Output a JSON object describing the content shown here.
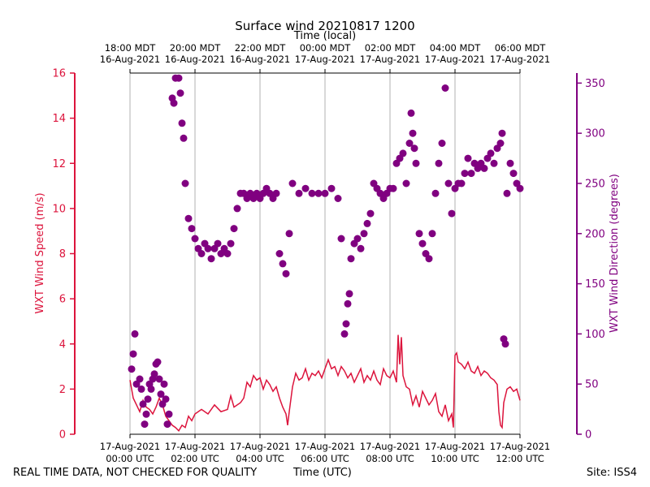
{
  "chart_data": {
    "type": "line",
    "title": "Surface wind 20210817 1200",
    "xlabel": "Time (UTC)",
    "top_xlabel": "Time (local)",
    "ylabel_left": "WXT Wind Speed (m/s)",
    "ylabel_right": "WXT Wind Direction (degrees)",
    "x_range_utc": [
      "2021-08-17 00:00",
      "2021-08-17 12:00"
    ],
    "ylim_left": [
      0,
      16
    ],
    "ylim_right": [
      0,
      360
    ],
    "yticks_left": [
      "0",
      "2",
      "4",
      "6",
      "8",
      "10",
      "12",
      "14",
      "16"
    ],
    "yticks_right": [
      "0",
      "50",
      "100",
      "150",
      "200",
      "250",
      "300",
      "350"
    ],
    "xticks_bottom": [
      {
        "hour": 0,
        "date": "17-Aug-2021",
        "time": "00:00 UTC"
      },
      {
        "hour": 2,
        "date": "17-Aug-2021",
        "time": "02:00 UTC"
      },
      {
        "hour": 4,
        "date": "17-Aug-2021",
        "time": "04:00 UTC"
      },
      {
        "hour": 6,
        "date": "17-Aug-2021",
        "time": "06:00 UTC"
      },
      {
        "hour": 8,
        "date": "17-Aug-2021",
        "time": "08:00 UTC"
      },
      {
        "hour": 10,
        "date": "17-Aug-2021",
        "time": "10:00 UTC"
      },
      {
        "hour": 12,
        "date": "17-Aug-2021",
        "time": "12:00 UTC"
      }
    ],
    "xticks_top": [
      {
        "hour": 0,
        "time": "18:00 MDT",
        "date": "16-Aug-2021"
      },
      {
        "hour": 2,
        "time": "20:00 MDT",
        "date": "16-Aug-2021"
      },
      {
        "hour": 4,
        "time": "22:00 MDT",
        "date": "16-Aug-2021"
      },
      {
        "hour": 6,
        "time": "00:00 MDT",
        "date": "17-Aug-2021"
      },
      {
        "hour": 8,
        "time": "02:00 MDT",
        "date": "17-Aug-2021"
      },
      {
        "hour": 10,
        "time": "04:00 MDT",
        "date": "17-Aug-2021"
      },
      {
        "hour": 12,
        "time": "06:00 MDT",
        "date": "17-Aug-2021"
      }
    ],
    "grid": "vertical",
    "series": [
      {
        "color": "#dc143c",
        "style": "line",
        "axis": "left",
        "points": [
          [
            0.0,
            2.4
          ],
          [
            0.1,
            1.6
          ],
          [
            0.2,
            1.3
          ],
          [
            0.3,
            1.0
          ],
          [
            0.4,
            1.5
          ],
          [
            0.5,
            1.2
          ],
          [
            0.6,
            1.1
          ],
          [
            0.7,
            0.9
          ],
          [
            0.8,
            1.2
          ],
          [
            0.9,
            1.6
          ],
          [
            1.0,
            1.3
          ],
          [
            1.1,
            0.8
          ],
          [
            1.2,
            0.6
          ],
          [
            1.3,
            0.4
          ],
          [
            1.4,
            0.3
          ],
          [
            1.5,
            0.15
          ],
          [
            1.6,
            0.4
          ],
          [
            1.7,
            0.3
          ],
          [
            1.8,
            0.8
          ],
          [
            1.9,
            0.6
          ],
          [
            2.0,
            0.9
          ],
          [
            2.2,
            1.1
          ],
          [
            2.4,
            0.9
          ],
          [
            2.6,
            1.3
          ],
          [
            2.8,
            1.0
          ],
          [
            3.0,
            1.1
          ],
          [
            3.1,
            1.7
          ],
          [
            3.2,
            1.2
          ],
          [
            3.4,
            1.4
          ],
          [
            3.5,
            1.6
          ],
          [
            3.6,
            2.3
          ],
          [
            3.7,
            2.1
          ],
          [
            3.8,
            2.6
          ],
          [
            3.9,
            2.4
          ],
          [
            4.0,
            2.5
          ],
          [
            4.1,
            2.0
          ],
          [
            4.2,
            2.4
          ],
          [
            4.3,
            2.2
          ],
          [
            4.4,
            1.9
          ],
          [
            4.5,
            2.1
          ],
          [
            4.6,
            1.6
          ],
          [
            4.7,
            1.2
          ],
          [
            4.8,
            0.9
          ],
          [
            4.85,
            0.4
          ],
          [
            4.9,
            1.0
          ],
          [
            5.0,
            2.1
          ],
          [
            5.1,
            2.7
          ],
          [
            5.2,
            2.4
          ],
          [
            5.3,
            2.5
          ],
          [
            5.4,
            2.9
          ],
          [
            5.5,
            2.4
          ],
          [
            5.6,
            2.7
          ],
          [
            5.7,
            2.6
          ],
          [
            5.8,
            2.8
          ],
          [
            5.9,
            2.5
          ],
          [
            6.0,
            2.9
          ],
          [
            6.1,
            3.3
          ],
          [
            6.2,
            2.9
          ],
          [
            6.3,
            3.0
          ],
          [
            6.4,
            2.6
          ],
          [
            6.5,
            3.0
          ],
          [
            6.6,
            2.8
          ],
          [
            6.7,
            2.5
          ],
          [
            6.8,
            2.7
          ],
          [
            6.9,
            2.3
          ],
          [
            7.0,
            2.6
          ],
          [
            7.1,
            2.9
          ],
          [
            7.2,
            2.3
          ],
          [
            7.3,
            2.6
          ],
          [
            7.4,
            2.4
          ],
          [
            7.5,
            2.8
          ],
          [
            7.6,
            2.4
          ],
          [
            7.7,
            2.2
          ],
          [
            7.8,
            2.9
          ],
          [
            7.9,
            2.6
          ],
          [
            8.0,
            2.5
          ],
          [
            8.1,
            2.8
          ],
          [
            8.2,
            2.3
          ],
          [
            8.25,
            4.4
          ],
          [
            8.3,
            3.1
          ],
          [
            8.35,
            4.3
          ],
          [
            8.4,
            2.6
          ],
          [
            8.5,
            2.1
          ],
          [
            8.6,
            2.0
          ],
          [
            8.7,
            1.3
          ],
          [
            8.8,
            1.7
          ],
          [
            8.9,
            1.2
          ],
          [
            9.0,
            1.9
          ],
          [
            9.1,
            1.6
          ],
          [
            9.2,
            1.3
          ],
          [
            9.3,
            1.5
          ],
          [
            9.4,
            1.8
          ],
          [
            9.5,
            1.0
          ],
          [
            9.6,
            0.8
          ],
          [
            9.7,
            1.3
          ],
          [
            9.8,
            0.6
          ],
          [
            9.9,
            0.9
          ],
          [
            9.95,
            0.3
          ],
          [
            10.0,
            3.5
          ],
          [
            10.05,
            3.6
          ],
          [
            10.1,
            3.2
          ],
          [
            10.2,
            3.1
          ],
          [
            10.3,
            2.9
          ],
          [
            10.4,
            3.2
          ],
          [
            10.5,
            2.8
          ],
          [
            10.6,
            2.7
          ],
          [
            10.7,
            3.0
          ],
          [
            10.8,
            2.6
          ],
          [
            10.9,
            2.8
          ],
          [
            11.0,
            2.7
          ],
          [
            11.1,
            2.5
          ],
          [
            11.2,
            2.4
          ],
          [
            11.3,
            2.2
          ],
          [
            11.35,
            1.0
          ],
          [
            11.4,
            0.4
          ],
          [
            11.45,
            0.3
          ],
          [
            11.5,
            1.4
          ],
          [
            11.6,
            2.0
          ],
          [
            11.7,
            2.1
          ],
          [
            11.8,
            1.9
          ],
          [
            11.9,
            2.0
          ],
          [
            12.0,
            1.5
          ]
        ]
      },
      {
        "color": "#800080",
        "style": "scatter",
        "axis": "right",
        "points": [
          [
            0.05,
            65
          ],
          [
            0.1,
            80
          ],
          [
            0.15,
            100
          ],
          [
            0.2,
            50
          ],
          [
            0.3,
            55
          ],
          [
            0.35,
            45
          ],
          [
            0.4,
            30
          ],
          [
            0.45,
            10
          ],
          [
            0.5,
            20
          ],
          [
            0.55,
            35
          ],
          [
            0.6,
            50
          ],
          [
            0.65,
            45
          ],
          [
            0.7,
            55
          ],
          [
            0.75,
            60
          ],
          [
            0.8,
            70
          ],
          [
            0.85,
            72
          ],
          [
            0.9,
            55
          ],
          [
            0.95,
            40
          ],
          [
            1.0,
            30
          ],
          [
            1.05,
            50
          ],
          [
            1.1,
            35
          ],
          [
            1.15,
            10
          ],
          [
            1.2,
            20
          ],
          [
            1.3,
            335
          ],
          [
            1.35,
            330
          ],
          [
            1.4,
            355
          ],
          [
            1.5,
            355
          ],
          [
            1.55,
            340
          ],
          [
            1.6,
            310
          ],
          [
            1.65,
            295
          ],
          [
            1.7,
            250
          ],
          [
            1.8,
            215
          ],
          [
            1.9,
            205
          ],
          [
            2.0,
            195
          ],
          [
            2.1,
            185
          ],
          [
            2.2,
            180
          ],
          [
            2.3,
            190
          ],
          [
            2.4,
            185
          ],
          [
            2.5,
            175
          ],
          [
            2.6,
            185
          ],
          [
            2.7,
            190
          ],
          [
            2.8,
            180
          ],
          [
            2.9,
            185
          ],
          [
            3.0,
            180
          ],
          [
            3.1,
            190
          ],
          [
            3.2,
            205
          ],
          [
            3.3,
            225
          ],
          [
            3.4,
            240
          ],
          [
            3.5,
            240
          ],
          [
            3.6,
            235
          ],
          [
            3.7,
            240
          ],
          [
            3.8,
            235
          ],
          [
            3.9,
            240
          ],
          [
            4.0,
            235
          ],
          [
            4.1,
            240
          ],
          [
            4.2,
            245
          ],
          [
            4.3,
            240
          ],
          [
            4.4,
            235
          ],
          [
            4.5,
            240
          ],
          [
            4.6,
            180
          ],
          [
            4.7,
            170
          ],
          [
            4.8,
            160
          ],
          [
            4.9,
            200
          ],
          [
            5.0,
            250
          ],
          [
            5.2,
            240
          ],
          [
            5.4,
            245
          ],
          [
            5.6,
            240
          ],
          [
            5.8,
            240
          ],
          [
            6.0,
            240
          ],
          [
            6.2,
            245
          ],
          [
            6.4,
            235
          ],
          [
            6.5,
            195
          ],
          [
            6.6,
            100
          ],
          [
            6.65,
            110
          ],
          [
            6.7,
            130
          ],
          [
            6.75,
            140
          ],
          [
            6.8,
            175
          ],
          [
            6.9,
            190
          ],
          [
            7.0,
            195
          ],
          [
            7.1,
            185
          ],
          [
            7.2,
            200
          ],
          [
            7.3,
            210
          ],
          [
            7.4,
            220
          ],
          [
            7.5,
            250
          ],
          [
            7.6,
            245
          ],
          [
            7.7,
            240
          ],
          [
            7.8,
            235
          ],
          [
            7.9,
            240
          ],
          [
            8.0,
            245
          ],
          [
            8.1,
            245
          ],
          [
            8.2,
            270
          ],
          [
            8.3,
            275
          ],
          [
            8.4,
            280
          ],
          [
            8.5,
            250
          ],
          [
            8.6,
            290
          ],
          [
            8.65,
            320
          ],
          [
            8.7,
            300
          ],
          [
            8.75,
            285
          ],
          [
            8.8,
            270
          ],
          [
            8.9,
            200
          ],
          [
            9.0,
            190
          ],
          [
            9.1,
            180
          ],
          [
            9.2,
            175
          ],
          [
            9.3,
            200
          ],
          [
            9.4,
            240
          ],
          [
            9.5,
            270
          ],
          [
            9.6,
            290
          ],
          [
            9.7,
            345
          ],
          [
            9.8,
            250
          ],
          [
            9.9,
            220
          ],
          [
            10.0,
            245
          ],
          [
            10.1,
            250
          ],
          [
            10.2,
            250
          ],
          [
            10.3,
            260
          ],
          [
            10.4,
            275
          ],
          [
            10.5,
            260
          ],
          [
            10.6,
            270
          ],
          [
            10.7,
            265
          ],
          [
            10.8,
            270
          ],
          [
            10.9,
            265
          ],
          [
            11.0,
            275
          ],
          [
            11.1,
            280
          ],
          [
            11.2,
            270
          ],
          [
            11.3,
            285
          ],
          [
            11.4,
            290
          ],
          [
            11.45,
            300
          ],
          [
            11.5,
            95
          ],
          [
            11.55,
            90
          ],
          [
            11.6,
            240
          ],
          [
            11.7,
            270
          ],
          [
            11.8,
            260
          ],
          [
            11.9,
            250
          ],
          [
            12.0,
            245
          ]
        ]
      }
    ]
  },
  "footer": {
    "left": "REAL TIME DATA, NOT CHECKED FOR QUALITY",
    "center": "Time (UTC)",
    "right": "Site: ISS4"
  },
  "colors": {
    "speed": "#dc143c",
    "direction": "#800080",
    "grid": "#b0b0b0"
  }
}
